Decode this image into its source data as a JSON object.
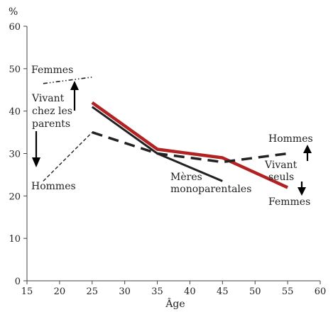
{
  "chart_data": {
    "type": "line",
    "xlabel": "Âge",
    "ylabel": "%",
    "xlim": [
      15,
      60
    ],
    "ylim": [
      0,
      60
    ],
    "xticks": [
      15,
      20,
      25,
      30,
      35,
      40,
      45,
      50,
      55,
      60
    ],
    "yticks": [
      0,
      10,
      20,
      30,
      40,
      50,
      60
    ],
    "grid": false,
    "series": [
      {
        "name": "Vivant chez les parents — Femmes",
        "style": "dash-dot-dot",
        "color": "#222222",
        "x": [
          17.5,
          25
        ],
        "y": [
          46.5,
          48
        ]
      },
      {
        "name": "Vivant chez les parents — Hommes",
        "style": "thin-dashed",
        "color": "#222222",
        "x": [
          17.5,
          25
        ],
        "y": [
          23.5,
          35
        ]
      },
      {
        "name": "Vivant seuls — Femmes",
        "style": "thick-solid",
        "color": "#b22222",
        "x": [
          25,
          35,
          45,
          55
        ],
        "y": [
          42,
          31,
          29,
          22
        ]
      },
      {
        "name": "Mères monoparentales",
        "style": "solid",
        "color": "#222222",
        "x": [
          25,
          35,
          45
        ],
        "y": [
          41,
          30,
          23.5
        ]
      },
      {
        "name": "Vivant seuls — Hommes",
        "style": "thick-dashed",
        "color": "#222222",
        "x": [
          25,
          35,
          45,
          55
        ],
        "y": [
          35,
          30,
          28,
          30
        ]
      }
    ],
    "annotations": {
      "femmes_left": "Femmes",
      "vivant_line1": "Vivant",
      "vivant_line2": "chez les",
      "vivant_line3": "parents",
      "hommes_left": "Hommes",
      "meres_line1": "Mères",
      "meres_line2": "monoparentales",
      "hommes_right": "Hommes",
      "seuls_line1": "Vivant",
      "seuls_line2": "seuls",
      "femmes_right": "Femmes"
    }
  }
}
